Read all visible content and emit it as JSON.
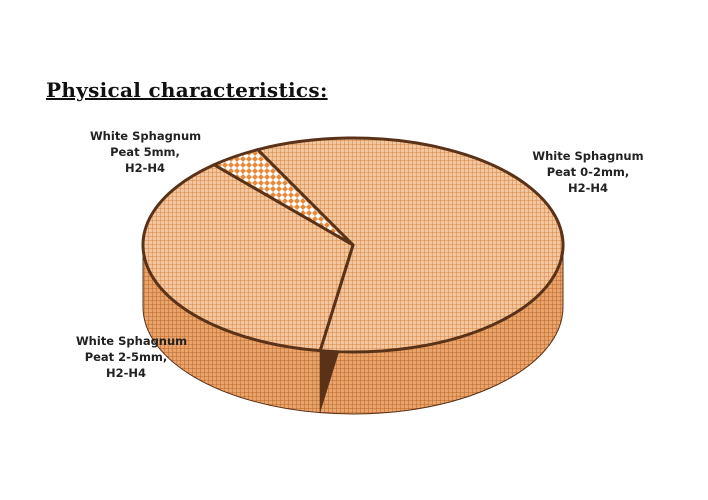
{
  "title": "Physical characteristics:",
  "chart_data": {
    "type": "pie",
    "three_d": true,
    "slices": [
      {
        "label": [
          "White Sphagnum",
          "Peat 0-2mm,",
          "H2-H4"
        ],
        "value": 60
      },
      {
        "label": [
          "White Sphagnum",
          "Peat 2-5mm,",
          "H2-H4"
        ],
        "value": 36
      },
      {
        "label": [
          "White Sphagnum",
          "Peat 5mm,",
          "H2-H4"
        ],
        "value": 4
      }
    ],
    "colors": {
      "fill": "#f2c7a0",
      "grid": "#d8833f",
      "side_fill": "#e9a46c",
      "side_grid": "#b9662a",
      "gap": "#5a3218"
    }
  }
}
